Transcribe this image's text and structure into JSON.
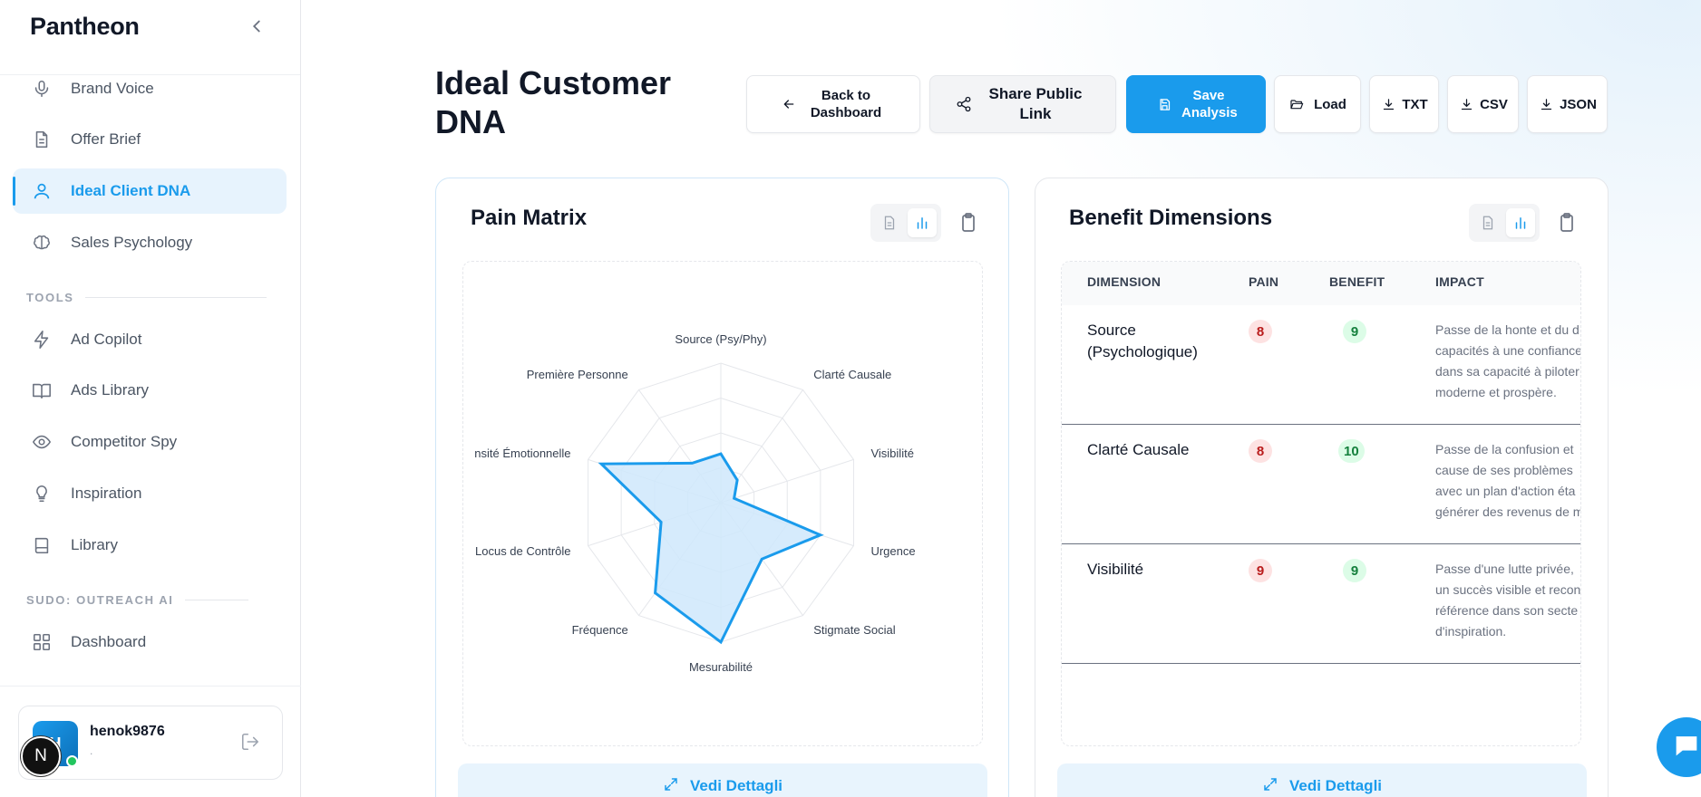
{
  "sidebar": {
    "brand": "Pantheon",
    "items": [
      {
        "label": "Brand Voice",
        "icon": "microphone-icon"
      },
      {
        "label": "Offer Brief",
        "icon": "document-icon"
      },
      {
        "label": "Ideal Client DNA",
        "icon": "user-icon",
        "active": true
      },
      {
        "label": "Sales Psychology",
        "icon": "brain-icon"
      }
    ],
    "tools_label": "TOOLS",
    "tools": [
      {
        "label": "Ad Copilot",
        "icon": "lightning-icon"
      },
      {
        "label": "Ads Library",
        "icon": "book-open-icon"
      },
      {
        "label": "Competitor Spy",
        "icon": "eye-icon"
      },
      {
        "label": "Inspiration",
        "icon": "lightbulb-icon"
      },
      {
        "label": "Library",
        "icon": "book-icon"
      }
    ],
    "sudo_label": "SUDO: OUTREACH AI",
    "sudo_items": [
      {
        "label": "Dashboard",
        "icon": "grid-icon"
      }
    ],
    "user": {
      "name": "henok9876",
      "sub": ".",
      "avatar_initial": "H"
    },
    "badge_letter": "N"
  },
  "header": {
    "title": "Ideal Customer DNA",
    "buttons": {
      "back": "Back to Dashboard",
      "share": "Share Public Link",
      "save": "Save Analysis",
      "load": "Load",
      "txt": "TXT",
      "csv": "CSV",
      "json": "JSON"
    }
  },
  "pain_card": {
    "title": "Pain Matrix",
    "details_label": "Vedi Dettagli"
  },
  "benefit_card": {
    "title": "Benefit Dimensions",
    "details_label": "Vedi Dettagli",
    "columns": [
      "DIMENSION",
      "PAIN",
      "BENEFIT",
      "IMPACT"
    ],
    "rows": [
      {
        "dimension": "Source (Psychologique)",
        "pain": "8",
        "benefit": "9",
        "impact_lines": [
          "Passe de la honte et du d",
          "capacités à une confiance",
          "dans sa capacité à piloter",
          "moderne et prospère."
        ]
      },
      {
        "dimension": "Clarté Causale",
        "pain": "8",
        "benefit": "10",
        "impact_lines": [
          "Passe de la confusion et",
          "cause de ses problèmes",
          "avec un plan d'action éta",
          "générer des revenus de m"
        ]
      },
      {
        "dimension": "Visibilité",
        "pain": "9",
        "benefit": "9",
        "impact_lines": [
          "Passe d'une lutte privée,",
          "un succès visible et recon",
          "référence dans son secte",
          "d'inspiration."
        ]
      }
    ]
  },
  "chart_data": {
    "type": "radar",
    "axes": [
      "Source (Psy/Phy)",
      "Clarté Causale",
      "Visibilité",
      "Urgence",
      "Stigmate Social",
      "Mesurabilité",
      "Fréquence",
      "Locus de Contrôle",
      "Intensité Émotionnelle",
      "Première Personne"
    ],
    "visible_axis_labels": [
      "Source (Psy/Phy)",
      "Clarté Causale",
      "Visibilité",
      "Urgence",
      "Stigmate Social",
      "Mesurabilité",
      "Fréquence",
      "Locus de Contrôle",
      "nsité Émotionnelle",
      "Première Personne"
    ],
    "values": [
      3.5,
      2.0,
      1.0,
      7.5,
      5.0,
      10.0,
      8.0,
      4.5,
      9.0,
      3.5
    ],
    "range": [
      0,
      10
    ],
    "rings": 4,
    "colors": {
      "line": "#1a9bec",
      "fill": "#cfe8fb",
      "grid": "#e5e7eb",
      "label": "#374151"
    }
  },
  "colors": {
    "accent": "#1a9bec",
    "accent_soft": "#e7f3fd"
  }
}
